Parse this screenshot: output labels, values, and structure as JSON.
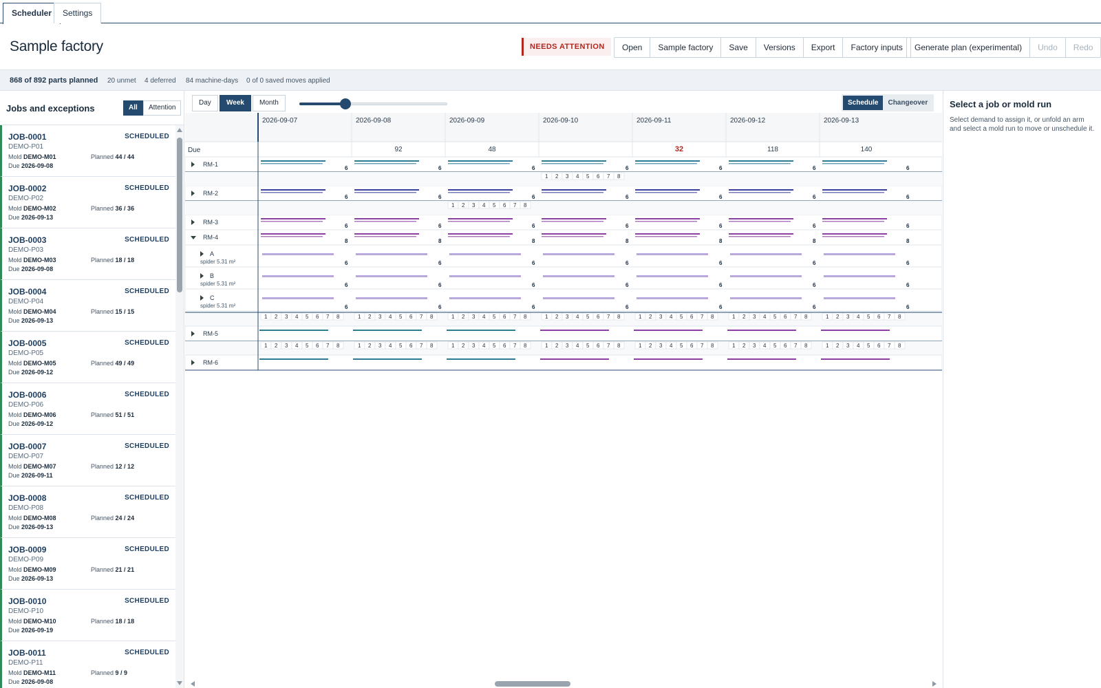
{
  "tabs": [
    {
      "label": "Scheduler"
    },
    {
      "label": "Settings"
    }
  ],
  "header": {
    "title": "Sample factory",
    "status_badge": "NEEDS ATTENTION",
    "actions": [
      "Open",
      "Sample factory",
      "Save",
      "Versions",
      "Export",
      "Factory inputs"
    ],
    "generate_label": "Generate plan (experimental)",
    "undo_label": "Undo",
    "redo_label": "Redo"
  },
  "stats": {
    "planned": "868 of 892 parts planned",
    "unmet": "20 unmet",
    "deferred": "4 deferred",
    "machine_days": "84 machine-days",
    "moves": "0 of 0 saved moves applied"
  },
  "left_panel": {
    "title": "Jobs and exceptions",
    "filter_all": "All",
    "filter_attention": "Attention",
    "mold_label": "Mold",
    "planned_label": "Planned",
    "due_label": "Due",
    "jobs": [
      {
        "id": "JOB-0001",
        "status": "SCHEDULED",
        "product": "DEMO-P01",
        "mold": "DEMO-M01",
        "planned": "44 / 44",
        "due": "2026-09-08"
      },
      {
        "id": "JOB-0002",
        "status": "SCHEDULED",
        "product": "DEMO-P02",
        "mold": "DEMO-M02",
        "planned": "36 / 36",
        "due": "2026-09-13"
      },
      {
        "id": "JOB-0003",
        "status": "SCHEDULED",
        "product": "DEMO-P03",
        "mold": "DEMO-M03",
        "planned": "18 / 18",
        "due": "2026-09-08"
      },
      {
        "id": "JOB-0004",
        "status": "SCHEDULED",
        "product": "DEMO-P04",
        "mold": "DEMO-M04",
        "planned": "15 / 15",
        "due": "2026-09-13"
      },
      {
        "id": "JOB-0005",
        "status": "SCHEDULED",
        "product": "DEMO-P05",
        "mold": "DEMO-M05",
        "planned": "49 / 49",
        "due": "2026-09-12"
      },
      {
        "id": "JOB-0006",
        "status": "SCHEDULED",
        "product": "DEMO-P06",
        "mold": "DEMO-M06",
        "planned": "51 / 51",
        "due": "2026-09-12"
      },
      {
        "id": "JOB-0007",
        "status": "SCHEDULED",
        "product": "DEMO-P07",
        "mold": "DEMO-M07",
        "planned": "12 / 12",
        "due": "2026-09-11"
      },
      {
        "id": "JOB-0008",
        "status": "SCHEDULED",
        "product": "DEMO-P08",
        "mold": "DEMO-M08",
        "planned": "24 / 24",
        "due": "2026-09-13"
      },
      {
        "id": "JOB-0009",
        "status": "SCHEDULED",
        "product": "DEMO-P09",
        "mold": "DEMO-M09",
        "planned": "21 / 21",
        "due": "2026-09-13"
      },
      {
        "id": "JOB-0010",
        "status": "SCHEDULED",
        "product": "DEMO-P10",
        "mold": "DEMO-M10",
        "planned": "18 / 18",
        "due": "2026-09-19"
      },
      {
        "id": "JOB-0011",
        "status": "SCHEDULED",
        "product": "DEMO-P11",
        "mold": "DEMO-M11",
        "planned": "9 / 9",
        "due": "2026-09-08"
      }
    ]
  },
  "toolbar": {
    "zoom": [
      "Day",
      "Week",
      "Month"
    ],
    "zoom_selected": "Week",
    "zoom_slider_fraction": 0.31,
    "modes": [
      "Schedule",
      "Changeover"
    ],
    "mode_selected": "Schedule"
  },
  "timeline": {
    "dates": [
      "2026-09-07",
      "2026-09-08",
      "2026-09-09",
      "2026-09-10",
      "2026-09-11",
      "2026-09-12",
      "2026-09-13"
    ],
    "due_label": "Due",
    "due_counts": [
      "",
      "92",
      "48",
      "",
      "32",
      "118",
      "140"
    ],
    "due_alert_index": 4,
    "slot_numbers": [
      "1",
      "2",
      "3",
      "4",
      "5",
      "6",
      "7",
      "8"
    ],
    "machines": [
      {
        "name": "RM-1",
        "count": "6"
      },
      {
        "name": "RM-2",
        "count": "6"
      },
      {
        "name": "RM-3",
        "count": "6"
      },
      {
        "name": "RM-4",
        "count": "8",
        "expanded": true,
        "arms": [
          {
            "name": "A",
            "sub": "spider 5.31 m²",
            "count": "6"
          },
          {
            "name": "B",
            "sub": "spider 5.31 m²",
            "count": "6"
          },
          {
            "name": "C",
            "sub": "spider 5.31 m²",
            "count": "6"
          }
        ]
      },
      {
        "name": "RM-5",
        "count": ""
      },
      {
        "name": "RM-6",
        "count": ""
      }
    ]
  },
  "colors": {
    "primary": "#244a6f",
    "teal": "#2e7c94",
    "indigo": "#3b3f9c",
    "purple": "#8b3fa0",
    "lavender": "#b8a8dc",
    "alert": "#b3261e",
    "scheduled": "#2e8b57"
  },
  "detail_panel": {
    "title": "Select a job or mold run",
    "hint": "Select demand to assign it, or unfold an arm and select a mold run to move or unschedule it."
  }
}
